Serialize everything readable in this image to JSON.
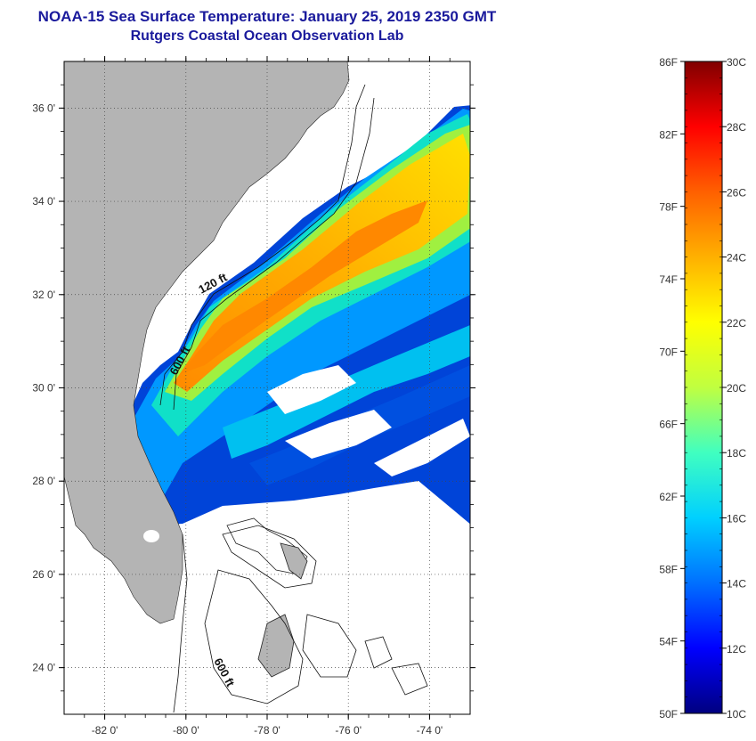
{
  "title": {
    "line1": "NOAA-15 Sea Surface Temperature:  January 25, 2019 2350 GMT",
    "line2": "Rutgers Coastal Ocean Observation Lab"
  },
  "map": {
    "lon_range": [
      -83,
      -73
    ],
    "lat_range": [
      23,
      37
    ],
    "x_ticks": [
      {
        "value": -82,
        "label": "-82 0'"
      },
      {
        "value": -80,
        "label": "-80 0'"
      },
      {
        "value": -78,
        "label": "-78 0'"
      },
      {
        "value": -76,
        "label": "-76 0'"
      },
      {
        "value": -74,
        "label": "-74 0'"
      }
    ],
    "y_ticks": [
      {
        "value": 36,
        "label": "36 0'"
      },
      {
        "value": 34,
        "label": "34 0'"
      },
      {
        "value": 32,
        "label": "32 0'"
      },
      {
        "value": 30,
        "label": "30 0'"
      },
      {
        "value": 28,
        "label": "28 0'"
      },
      {
        "value": 26,
        "label": "26 0'"
      },
      {
        "value": 24,
        "label": "24 0'"
      }
    ],
    "contour_labels": {
      "shelf_120": "120 ft",
      "slope_600_north": "600 ft",
      "slope_600_south": "600 ft"
    },
    "colors": {
      "land": "#b4b4b4",
      "ocean_nodata": "#ffffff",
      "frame": "#000000"
    }
  },
  "colorbar": {
    "fahrenheit": [
      "86F",
      "82F",
      "78F",
      "74F",
      "70F",
      "66F",
      "62F",
      "58F",
      "54F",
      "50F"
    ],
    "celsius": [
      "30C",
      "28C",
      "26C",
      "24C",
      "22C",
      "20C",
      "18C",
      "16C",
      "14C",
      "12C",
      "10C"
    ],
    "gradient_stops": [
      "#000080",
      "#0000ff",
      "#0070ff",
      "#00d0ff",
      "#40ffc0",
      "#c0ff40",
      "#ffff00",
      "#ffb000",
      "#ff6000",
      "#ff0000",
      "#800000"
    ]
  }
}
